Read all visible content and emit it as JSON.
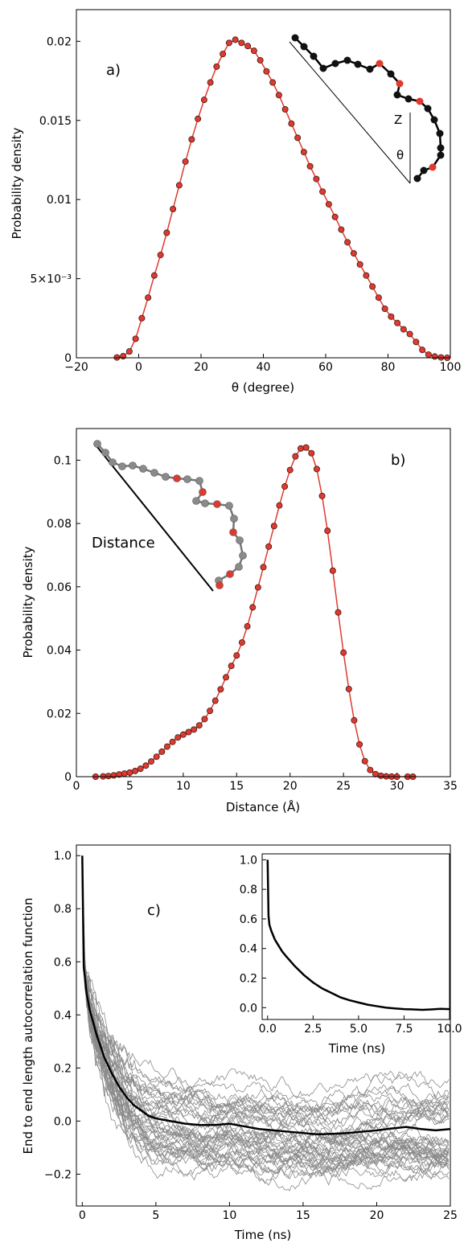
{
  "chart_data": [
    {
      "type": "scatter",
      "panel_label": "a)",
      "xlabel": "θ (degree)",
      "ylabel": "Probability density",
      "xlim": [
        -20,
        100
      ],
      "ylim": [
        0,
        0.022
      ],
      "xticks": [
        -20,
        0,
        20,
        40,
        60,
        80,
        100
      ],
      "xtick_labels": [
        "−20",
        "0",
        "20",
        "40",
        "60",
        "80",
        "100"
      ],
      "yticks": [
        0,
        0.005,
        0.01,
        0.015,
        0.02
      ],
      "ytick_labels": [
        "0",
        "5×10⁻³",
        "0.01",
        "0.015",
        "0.02"
      ],
      "series": [
        {
          "color": "#e03a2e",
          "x": [
            -7,
            -5,
            -3,
            -1,
            1,
            3,
            5,
            7,
            9,
            11,
            13,
            15,
            17,
            19,
            21,
            23,
            25,
            27,
            29,
            31,
            33,
            35,
            37,
            39,
            41,
            43,
            45,
            47,
            49,
            51,
            53,
            55,
            57,
            59,
            61,
            63,
            65,
            67,
            69,
            71,
            73,
            75,
            77,
            79,
            81,
            83,
            85,
            87,
            89,
            91,
            93,
            95,
            97,
            99
          ],
          "y": [
            2e-05,
            0.0001,
            0.0004,
            0.0012,
            0.0025,
            0.0038,
            0.0052,
            0.0065,
            0.0079,
            0.0094,
            0.0109,
            0.0124,
            0.0138,
            0.0151,
            0.0163,
            0.0174,
            0.0184,
            0.0192,
            0.0199,
            0.0201,
            0.0199,
            0.0197,
            0.0194,
            0.0188,
            0.0181,
            0.0174,
            0.0166,
            0.0157,
            0.0148,
            0.0139,
            0.013,
            0.0121,
            0.0113,
            0.0105,
            0.0097,
            0.0089,
            0.0081,
            0.0073,
            0.0066,
            0.0059,
            0.0052,
            0.0045,
            0.0038,
            0.0031,
            0.0026,
            0.0022,
            0.0018,
            0.0015,
            0.001,
            0.0005,
            0.0002,
            8e-05,
            2e-05,
            0.0
          ]
        }
      ],
      "inset_labels": [
        "Z",
        "θ"
      ]
    },
    {
      "type": "scatter",
      "panel_label": "b)",
      "xlabel": "Distance (Å)",
      "ylabel": "Probability density",
      "xlim": [
        0,
        35
      ],
      "ylim": [
        0,
        0.11
      ],
      "xticks": [
        0,
        5,
        10,
        15,
        20,
        25,
        30,
        35
      ],
      "xtick_labels": [
        "0",
        "5",
        "10",
        "15",
        "20",
        "25",
        "30",
        "35"
      ],
      "yticks": [
        0,
        0.02,
        0.04,
        0.06,
        0.08,
        0.1
      ],
      "ytick_labels": [
        "0",
        "0.02",
        "0.04",
        "0.06",
        "0.08",
        "0.1"
      ],
      "series": [
        {
          "color": "#e03a2e",
          "x": [
            1.8,
            2.5,
            3,
            3.5,
            4,
            4.5,
            5,
            5.5,
            6,
            6.5,
            7,
            7.5,
            8,
            8.5,
            9,
            9.5,
            10,
            10.5,
            11,
            11.5,
            12,
            12.5,
            13,
            13.5,
            14,
            14.5,
            15,
            15.5,
            16,
            16.5,
            17,
            17.5,
            18,
            18.5,
            19,
            19.5,
            20,
            20.5,
            21,
            21.5,
            22,
            22.5,
            23,
            23.5,
            24,
            24.5,
            25,
            25.5,
            26,
            26.5,
            27,
            27.5,
            28,
            28.5,
            29,
            29.5,
            30,
            31,
            31.5
          ],
          "y": [
            0.0,
            0.0001,
            0.0002,
            0.0004,
            0.0007,
            0.001,
            0.0013,
            0.0018,
            0.0025,
            0.0035,
            0.0048,
            0.0063,
            0.0079,
            0.0095,
            0.011,
            0.0124,
            0.0133,
            0.0141,
            0.0149,
            0.0162,
            0.0182,
            0.0208,
            0.024,
            0.0276,
            0.0314,
            0.035,
            0.0383,
            0.0424,
            0.0475,
            0.0535,
            0.0598,
            0.0662,
            0.0727,
            0.0792,
            0.0857,
            0.0917,
            0.0969,
            0.1012,
            0.1037,
            0.104,
            0.1022,
            0.0972,
            0.0887,
            0.0777,
            0.0651,
            0.0519,
            0.0392,
            0.0277,
            0.0178,
            0.0102,
            0.0049,
            0.0021,
            0.0008,
            0.0003,
            0.0001,
            2e-05,
            0.0,
            0.0,
            0.0
          ]
        }
      ],
      "inset_label": "Distance"
    },
    {
      "type": "line",
      "panel_label": "c)",
      "xlabel": "Time (ns)",
      "ylabel": "End to end length autocorrelation function",
      "xlim": [
        -0.4,
        25
      ],
      "ylim": [
        -0.32,
        1.04
      ],
      "xticks": [
        0,
        5,
        10,
        15,
        20,
        25
      ],
      "xtick_labels": [
        "0",
        "5",
        "10",
        "15",
        "20",
        "25"
      ],
      "yticks": [
        -0.2,
        0.0,
        0.2,
        0.4,
        0.6,
        0.8,
        1.0
      ],
      "ytick_labels": [
        "−0.2",
        "0.0",
        "0.2",
        "0.4",
        "0.6",
        "0.8",
        "1.0"
      ],
      "mean_color": "#000000",
      "trajectory_color": "#8a8a8a",
      "mean": {
        "x": [
          0,
          0.1,
          0.3,
          0.5,
          1,
          1.5,
          2,
          2.5,
          3,
          3.5,
          4,
          4.5,
          5,
          6,
          7,
          8,
          9,
          10,
          11,
          12,
          13,
          14,
          15,
          16,
          17,
          18,
          19,
          20,
          21,
          22,
          23,
          24,
          25
        ],
        "y": [
          1.0,
          0.58,
          0.48,
          0.42,
          0.32,
          0.24,
          0.18,
          0.13,
          0.09,
          0.06,
          0.04,
          0.02,
          0.01,
          0.0,
          -0.01,
          -0.015,
          -0.015,
          -0.01,
          -0.02,
          -0.03,
          -0.035,
          -0.04,
          -0.045,
          -0.05,
          -0.048,
          -0.045,
          -0.04,
          -0.035,
          -0.028,
          -0.022,
          -0.03,
          -0.035,
          -0.03
        ]
      },
      "inset": {
        "xlabel": "Time (ns)",
        "xlim": [
          -0.3,
          10
        ],
        "ylim": [
          -0.08,
          1.04
        ],
        "xticks": [
          0,
          2.5,
          5,
          7.5,
          10
        ],
        "xtick_labels": [
          "0.0",
          "2.5",
          "5.0",
          "7.5",
          "10.0"
        ],
        "yticks": [
          0.0,
          0.2,
          0.4,
          0.6,
          0.8,
          1.0
        ],
        "ytick_labels": [
          "0.0",
          "0.2",
          "0.4",
          "0.6",
          "0.8",
          "1.0"
        ],
        "x": [
          0,
          0.05,
          0.1,
          0.2,
          0.4,
          0.6,
          0.8,
          1,
          1.5,
          2,
          2.5,
          3,
          3.5,
          4,
          4.5,
          5,
          5.5,
          6,
          6.5,
          7,
          7.5,
          8,
          8.5,
          9,
          9.5,
          10
        ],
        "y": [
          1.0,
          0.62,
          0.56,
          0.52,
          0.46,
          0.42,
          0.38,
          0.35,
          0.28,
          0.22,
          0.17,
          0.13,
          0.1,
          0.07,
          0.05,
          0.035,
          0.02,
          0.01,
          0.0,
          -0.005,
          -0.01,
          -0.012,
          -0.015,
          -0.012,
          -0.008,
          -0.01
        ]
      }
    }
  ]
}
